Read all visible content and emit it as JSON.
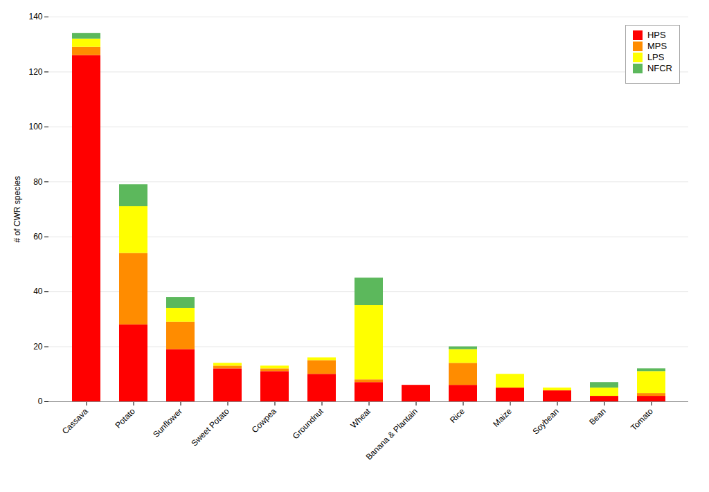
{
  "chart_data": {
    "type": "bar",
    "stacked": true,
    "categories": [
      "Cassava",
      "Potato",
      "Sunflower",
      "Sweet Potato",
      "Cowpea",
      "Groundnut",
      "Wheat",
      "Banana & Plantain",
      "Rice",
      "Maize",
      "Soybean",
      "Bean",
      "Tomato"
    ],
    "series": [
      {
        "name": "HPS",
        "color": "#FF0000",
        "values": [
          126,
          28,
          19,
          12,
          11,
          10,
          7,
          6,
          6,
          5,
          4,
          2,
          2
        ]
      },
      {
        "name": "MPS",
        "color": "#FF8C00",
        "values": [
          3,
          26,
          10,
          1,
          1,
          5,
          1,
          0,
          8,
          0,
          0,
          0,
          1
        ]
      },
      {
        "name": "LPS",
        "color": "#FFFF00",
        "values": [
          3,
          17,
          5,
          1,
          1,
          1,
          27,
          0,
          5,
          5,
          1,
          3,
          8
        ]
      },
      {
        "name": "NFCR",
        "color": "#5CB85C",
        "values": [
          2,
          8,
          4,
          0,
          0,
          0,
          10,
          0,
          1,
          0,
          0,
          2,
          1
        ]
      }
    ],
    "ylabel": "# of CWR species",
    "ylim": [
      0,
      140
    ],
    "yticks": [
      0,
      20,
      40,
      60,
      80,
      100,
      120,
      140
    ],
    "grid": true,
    "legend": "upper right"
  }
}
